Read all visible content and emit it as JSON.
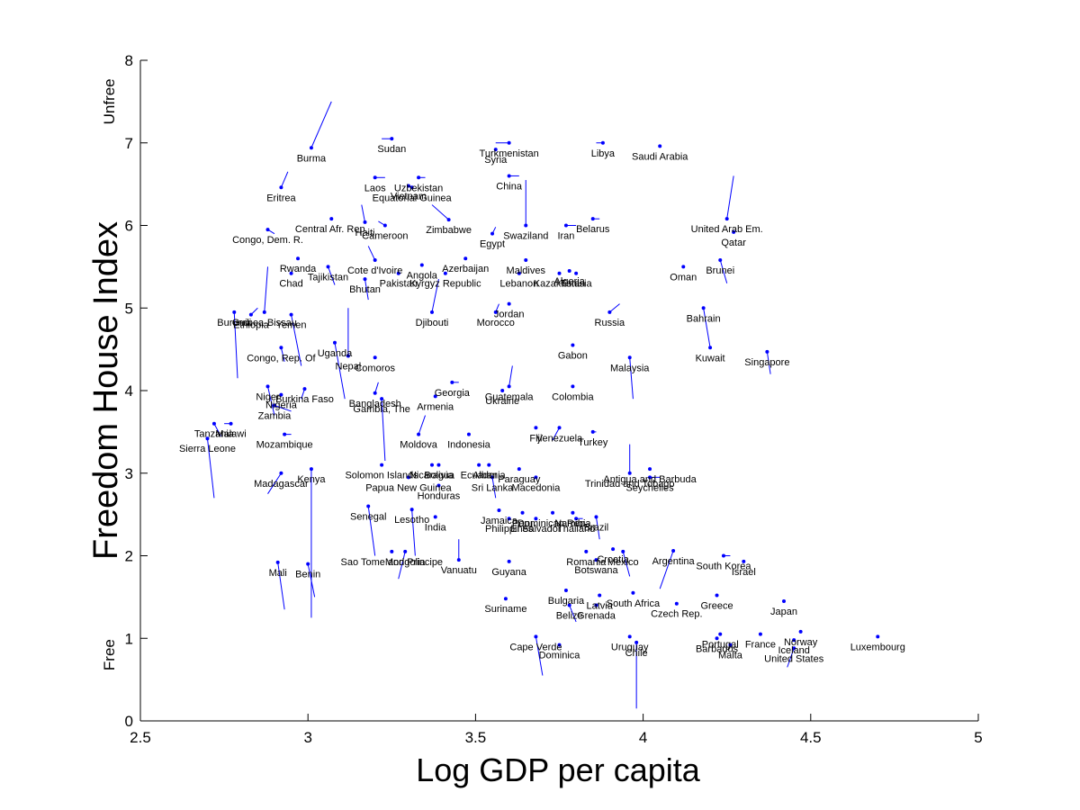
{
  "chart_data": {
    "type": "scatter",
    "title": "",
    "xlabel": "Log GDP per capita",
    "ylabel": "Freedom House Index",
    "xlim": [
      2.5,
      5
    ],
    "ylim": [
      0,
      8
    ],
    "xticks": [
      "2.5",
      "3",
      "3.5",
      "4",
      "4.5",
      "5"
    ],
    "yticks": [
      "0",
      "1",
      "2",
      "3",
      "4",
      "5",
      "6",
      "7",
      "8"
    ],
    "y_annotations": [
      {
        "text": "Free",
        "y": 0.8
      },
      {
        "text": "Unfree",
        "y": 7.5
      }
    ],
    "grid": false,
    "marker_color": "#0000ff",
    "line_color": "#0000ff",
    "points": [
      {
        "label": "Burma",
        "x": 3.01,
        "y": 6.94,
        "x2": 3.07,
        "y2": 7.5
      },
      {
        "label": "Sudan",
        "x": 3.25,
        "y": 7.05,
        "x2": 3.22,
        "y2": 7.05
      },
      {
        "label": "Turkmenistan",
        "x": 3.6,
        "y": 7.0,
        "x2": 3.56,
        "y2": 7.0
      },
      {
        "label": "Syria",
        "x": 3.56,
        "y": 6.92,
        "x2": 3.56,
        "y2": 6.92
      },
      {
        "label": "Libya",
        "x": 3.88,
        "y": 7.0,
        "x2": 3.86,
        "y2": 7.0
      },
      {
        "label": "Saudi Arabia",
        "x": 4.05,
        "y": 6.96,
        "x2": 4.05,
        "y2": 6.96
      },
      {
        "label": "Eritrea",
        "x": 2.92,
        "y": 6.46,
        "x2": 2.94,
        "y2": 6.65
      },
      {
        "label": "Laos",
        "x": 3.2,
        "y": 6.58,
        "x2": 3.23,
        "y2": 6.58
      },
      {
        "label": "Uzbekistan",
        "x": 3.33,
        "y": 6.58,
        "x2": 3.35,
        "y2": 6.58
      },
      {
        "label": "Equatorial Guinea",
        "x": 3.31,
        "y": 6.46,
        "x2": 3.31,
        "y2": 6.46
      },
      {
        "label": "Vietnam",
        "x": 3.3,
        "y": 6.48,
        "x2": 3.3,
        "y2": 6.48
      },
      {
        "label": "China",
        "x": 3.6,
        "y": 6.6,
        "x2": 3.63,
        "y2": 6.6
      },
      {
        "label": "Central Afr. Rep.",
        "x": 3.07,
        "y": 6.08,
        "x2": 3.07,
        "y2": 6.08
      },
      {
        "label": "Haiti",
        "x": 3.17,
        "y": 6.04,
        "x2": 3.16,
        "y2": 6.25
      },
      {
        "label": "Cameroon",
        "x": 3.23,
        "y": 6.0,
        "x2": 3.21,
        "y2": 6.05
      },
      {
        "label": "Zimbabwe",
        "x": 3.42,
        "y": 6.07,
        "x2": 3.37,
        "y2": 6.25
      },
      {
        "label": "Swaziland",
        "x": 3.65,
        "y": 6.0,
        "x2": 3.65,
        "y2": 6.55
      },
      {
        "label": "Iran",
        "x": 3.77,
        "y": 6.0,
        "x2": 3.8,
        "y2": 6.0
      },
      {
        "label": "Belarus",
        "x": 3.85,
        "y": 6.08,
        "x2": 3.87,
        "y2": 6.08
      },
      {
        "label": "Egypt",
        "x": 3.55,
        "y": 5.9,
        "x2": 3.56,
        "y2": 5.98
      },
      {
        "label": "United Arab Em.",
        "x": 4.25,
        "y": 6.08,
        "x2": 4.27,
        "y2": 6.6
      },
      {
        "label": "Qatar",
        "x": 4.27,
        "y": 5.92,
        "x2": 4.27,
        "y2": 5.92
      },
      {
        "label": "Congo, Dem. R.",
        "x": 2.88,
        "y": 5.95,
        "x2": 2.9,
        "y2": 5.9
      },
      {
        "label": "Rwanda",
        "x": 2.97,
        "y": 5.6,
        "x2": 2.97,
        "y2": 5.6
      },
      {
        "label": "Tajikistan",
        "x": 3.06,
        "y": 5.5,
        "x2": 3.08,
        "y2": 5.28
      },
      {
        "label": "Chad",
        "x": 2.95,
        "y": 5.42,
        "x2": 2.95,
        "y2": 5.42
      },
      {
        "label": "Cote d'Ivoire",
        "x": 3.2,
        "y": 5.58,
        "x2": 3.18,
        "y2": 5.75
      },
      {
        "label": "Angola",
        "x": 3.34,
        "y": 5.52,
        "x2": 3.34,
        "y2": 5.52
      },
      {
        "label": "Pakistan",
        "x": 3.27,
        "y": 5.42,
        "x2": 3.27,
        "y2": 5.42
      },
      {
        "label": "Bhutan",
        "x": 3.17,
        "y": 5.35,
        "x2": 3.18,
        "y2": 5.1
      },
      {
        "label": "Azerbaijan",
        "x": 3.47,
        "y": 5.6,
        "x2": 3.47,
        "y2": 5.6
      },
      {
        "label": "Kyrgyz Republic",
        "x": 3.41,
        "y": 5.42,
        "x2": 3.41,
        "y2": 5.42
      },
      {
        "label": "Maldives",
        "x": 3.65,
        "y": 5.58,
        "x2": 3.65,
        "y2": 5.58
      },
      {
        "label": "Lebanon",
        "x": 3.63,
        "y": 5.42,
        "x2": 3.63,
        "y2": 5.42
      },
      {
        "label": "Algeria",
        "x": 3.78,
        "y": 5.45,
        "x2": 3.78,
        "y2": 5.45
      },
      {
        "label": "Kazakhstan",
        "x": 3.75,
        "y": 5.42,
        "x2": 3.75,
        "y2": 5.42
      },
      {
        "label": "Tunisia",
        "x": 3.8,
        "y": 5.42,
        "x2": 3.8,
        "y2": 5.42
      },
      {
        "label": "Oman",
        "x": 4.12,
        "y": 5.5,
        "x2": 4.12,
        "y2": 5.5
      },
      {
        "label": "Brunei",
        "x": 4.23,
        "y": 5.58,
        "x2": 4.25,
        "y2": 5.3
      },
      {
        "label": "Djibouti",
        "x": 3.37,
        "y": 4.95,
        "x2": 3.39,
        "y2": 5.35
      },
      {
        "label": "Morocco",
        "x": 3.56,
        "y": 4.95,
        "x2": 3.57,
        "y2": 5.05
      },
      {
        "label": "Jordan",
        "x": 3.6,
        "y": 5.05,
        "x2": 3.6,
        "y2": 5.05
      },
      {
        "label": "Russia",
        "x": 3.9,
        "y": 4.95,
        "x2": 3.93,
        "y2": 5.05
      },
      {
        "label": "Bahrain",
        "x": 4.18,
        "y": 5.0,
        "x2": 4.18,
        "y2": 5.0
      },
      {
        "label": "Burundi",
        "x": 2.78,
        "y": 4.95,
        "x2": 2.79,
        "y2": 4.15
      },
      {
        "label": "Ethiopia",
        "x": 2.83,
        "y": 4.92,
        "x2": 2.85,
        "y2": 5.0
      },
      {
        "label": "Guinea-Bissau",
        "x": 2.87,
        "y": 4.95,
        "x2": 2.88,
        "y2": 5.5
      },
      {
        "label": "Yemen",
        "x": 2.95,
        "y": 4.92,
        "x2": 2.98,
        "y2": 4.3
      },
      {
        "label": "Congo, Rep. Of",
        "x": 2.92,
        "y": 4.52,
        "x2": 2.93,
        "y2": 4.35
      },
      {
        "label": "Uganda",
        "x": 3.08,
        "y": 4.58,
        "x2": 3.11,
        "y2": 3.9
      },
      {
        "label": "Nepal",
        "x": 3.12,
        "y": 4.42,
        "x2": 3.12,
        "y2": 5.0
      },
      {
        "label": "Comoros",
        "x": 3.2,
        "y": 4.4,
        "x2": 3.2,
        "y2": 4.4
      },
      {
        "label": "Gabon",
        "x": 3.79,
        "y": 4.55,
        "x2": 3.79,
        "y2": 4.55
      },
      {
        "label": "Kuwait",
        "x": 4.2,
        "y": 4.52,
        "x2": 4.18,
        "y2": 5.0
      },
      {
        "label": "Singapore",
        "x": 4.37,
        "y": 4.47,
        "x2": 4.38,
        "y2": 4.2
      },
      {
        "label": "Malaysia",
        "x": 3.96,
        "y": 4.4,
        "x2": 3.97,
        "y2": 3.9
      },
      {
        "label": "Georgia",
        "x": 3.43,
        "y": 4.1,
        "x2": 3.45,
        "y2": 4.1
      },
      {
        "label": "Guatemala",
        "x": 3.6,
        "y": 4.05,
        "x2": 3.61,
        "y2": 4.3
      },
      {
        "label": "Ukraine",
        "x": 3.58,
        "y": 4.0,
        "x2": 3.58,
        "y2": 4.0
      },
      {
        "label": "Colombia",
        "x": 3.79,
        "y": 4.05,
        "x2": 3.79,
        "y2": 4.05
      },
      {
        "label": "Niger",
        "x": 2.88,
        "y": 4.05,
        "x2": 2.9,
        "y2": 3.7
      },
      {
        "label": "Nigeria",
        "x": 2.92,
        "y": 3.95,
        "x2": 2.92,
        "y2": 3.95
      },
      {
        "label": "Burkina Faso",
        "x": 2.99,
        "y": 4.02,
        "x2": 2.98,
        "y2": 3.9
      },
      {
        "label": "Zambia",
        "x": 2.9,
        "y": 3.82,
        "x2": 2.95,
        "y2": 3.75
      },
      {
        "label": "Bangladesh",
        "x": 3.2,
        "y": 3.97,
        "x2": 3.21,
        "y2": 4.1
      },
      {
        "label": "Gambia, The",
        "x": 3.22,
        "y": 3.9,
        "x2": 3.23,
        "y2": 3.15
      },
      {
        "label": "Armenia",
        "x": 3.38,
        "y": 3.93,
        "x2": 3.38,
        "y2": 3.93
      },
      {
        "label": "Tanzania",
        "x": 2.72,
        "y": 3.6,
        "x2": 2.74,
        "y2": 3.45
      },
      {
        "label": "Malawi",
        "x": 2.77,
        "y": 3.6,
        "x2": 2.75,
        "y2": 3.6
      },
      {
        "label": "Sierra Leone",
        "x": 2.7,
        "y": 3.42,
        "x2": 2.72,
        "y2": 2.7
      },
      {
        "label": "Mozambique",
        "x": 2.93,
        "y": 3.47,
        "x2": 2.95,
        "y2": 3.47
      },
      {
        "label": "Moldova",
        "x": 3.33,
        "y": 3.47,
        "x2": 3.35,
        "y2": 3.7
      },
      {
        "label": "Indonesia",
        "x": 3.48,
        "y": 3.47,
        "x2": 3.48,
        "y2": 3.47
      },
      {
        "label": "Fiji",
        "x": 3.68,
        "y": 3.55,
        "x2": 3.68,
        "y2": 3.55
      },
      {
        "label": "Venezuela",
        "x": 3.75,
        "y": 3.55,
        "x2": 3.73,
        "y2": 3.4
      },
      {
        "label": "Turkey",
        "x": 3.85,
        "y": 3.5,
        "x2": 3.86,
        "y2": 3.5
      },
      {
        "label": "Solomon Islands",
        "x": 3.22,
        "y": 3.1,
        "x2": 3.22,
        "y2": 3.1
      },
      {
        "label": "Madagascar",
        "x": 2.92,
        "y": 3.0,
        "x2": 2.88,
        "y2": 2.75
      },
      {
        "label": "Kenya",
        "x": 3.01,
        "y": 3.05,
        "x2": 3.01,
        "y2": 1.25
      },
      {
        "label": "Nicaragua",
        "x": 3.37,
        "y": 3.1,
        "x2": 3.37,
        "y2": 3.1
      },
      {
        "label": "Bolivia",
        "x": 3.39,
        "y": 3.1,
        "x2": 3.39,
        "y2": 3.1
      },
      {
        "label": "Ecuador",
        "x": 3.51,
        "y": 3.1,
        "x2": 3.51,
        "y2": 3.1
      },
      {
        "label": "Albania",
        "x": 3.54,
        "y": 3.1,
        "x2": 3.54,
        "y2": 3.1
      },
      {
        "label": "Paraguay",
        "x": 3.63,
        "y": 3.05,
        "x2": 3.63,
        "y2": 3.05
      },
      {
        "label": "Papua New Guinea",
        "x": 3.3,
        "y": 2.95,
        "x2": 3.3,
        "y2": 2.95
      },
      {
        "label": "Honduras",
        "x": 3.39,
        "y": 2.85,
        "x2": 3.39,
        "y2": 2.85
      },
      {
        "label": "Sri Lanka",
        "x": 3.55,
        "y": 2.95,
        "x2": 3.56,
        "y2": 2.7
      },
      {
        "label": "Macedonia",
        "x": 3.68,
        "y": 2.95,
        "x2": 3.68,
        "y2": 2.95
      },
      {
        "label": "Trinidad and Tobago",
        "x": 3.96,
        "y": 3.0,
        "x2": 3.96,
        "y2": 3.35
      },
      {
        "label": "Antigua and Barbuda",
        "x": 4.02,
        "y": 3.05,
        "x2": 4.02,
        "y2": 3.05
      },
      {
        "label": "Seychelles",
        "x": 4.02,
        "y": 2.95,
        "x2": 4.05,
        "y2": 2.95
      },
      {
        "label": "Senegal",
        "x": 3.18,
        "y": 2.6,
        "x2": 3.2,
        "y2": 2.0
      },
      {
        "label": "Lesotho",
        "x": 3.31,
        "y": 2.56,
        "x2": 3.32,
        "y2": 2.0
      },
      {
        "label": "India",
        "x": 3.38,
        "y": 2.47,
        "x2": 3.38,
        "y2": 2.47
      },
      {
        "label": "Jamaica",
        "x": 3.57,
        "y": 2.55,
        "x2": 3.57,
        "y2": 2.55
      },
      {
        "label": "Philippines",
        "x": 3.6,
        "y": 2.45,
        "x2": 3.6,
        "y2": 2.45
      },
      {
        "label": "Peru",
        "x": 3.64,
        "y": 2.52,
        "x2": 3.64,
        "y2": 2.52
      },
      {
        "label": "Dominican Rep.",
        "x": 3.73,
        "y": 2.52,
        "x2": 3.73,
        "y2": 2.52
      },
      {
        "label": "Namibia",
        "x": 3.79,
        "y": 2.52,
        "x2": 3.79,
        "y2": 2.52
      },
      {
        "label": "El Salvador",
        "x": 3.68,
        "y": 2.45,
        "x2": 3.68,
        "y2": 2.45
      },
      {
        "label": "Thailand",
        "x": 3.8,
        "y": 2.45,
        "x2": 3.82,
        "y2": 2.45
      },
      {
        "label": "Brazil",
        "x": 3.86,
        "y": 2.47,
        "x2": 3.87,
        "y2": 2.2
      },
      {
        "label": "Sao Tome and Principe",
        "x": 3.25,
        "y": 2.05,
        "x2": 3.25,
        "y2": 2.05
      },
      {
        "label": "Mongolia",
        "x": 3.29,
        "y": 2.05,
        "x2": 3.27,
        "y2": 1.72
      },
      {
        "label": "Vanuatu",
        "x": 3.45,
        "y": 1.95,
        "x2": 3.45,
        "y2": 2.2
      },
      {
        "label": "Guyana",
        "x": 3.6,
        "y": 1.93,
        "x2": 3.6,
        "y2": 1.93
      },
      {
        "label": "Romania",
        "x": 3.83,
        "y": 2.05,
        "x2": 3.83,
        "y2": 2.05
      },
      {
        "label": "Croatia",
        "x": 3.91,
        "y": 2.08,
        "x2": 3.91,
        "y2": 2.08
      },
      {
        "label": "Mexico",
        "x": 3.94,
        "y": 2.05,
        "x2": 3.96,
        "y2": 1.75
      },
      {
        "label": "Botswana",
        "x": 3.86,
        "y": 1.95,
        "x2": 3.86,
        "y2": 1.95
      },
      {
        "label": "Argentina",
        "x": 4.09,
        "y": 2.06,
        "x2": 4.05,
        "y2": 1.6
      },
      {
        "label": "South Korea",
        "x": 4.24,
        "y": 2.0,
        "x2": 4.26,
        "y2": 2.0
      },
      {
        "label": "Israel",
        "x": 4.3,
        "y": 1.93,
        "x2": 4.3,
        "y2": 1.93
      },
      {
        "label": "Mali",
        "x": 2.91,
        "y": 1.92,
        "x2": 2.93,
        "y2": 1.35
      },
      {
        "label": "Benin",
        "x": 3.0,
        "y": 1.9,
        "x2": 3.02,
        "y2": 1.5
      },
      {
        "label": "Suriname",
        "x": 3.59,
        "y": 1.48,
        "x2": 3.59,
        "y2": 1.48
      },
      {
        "label": "Bulgaria",
        "x": 3.77,
        "y": 1.58,
        "x2": 3.77,
        "y2": 1.58
      },
      {
        "label": "Latvia",
        "x": 3.87,
        "y": 1.52,
        "x2": 3.87,
        "y2": 1.52
      },
      {
        "label": "South Africa",
        "x": 3.97,
        "y": 1.55,
        "x2": 3.97,
        "y2": 1.55
      },
      {
        "label": "Greece",
        "x": 4.22,
        "y": 1.52,
        "x2": 4.22,
        "y2": 1.52
      },
      {
        "label": "Japan",
        "x": 4.42,
        "y": 1.45,
        "x2": 4.42,
        "y2": 1.45
      },
      {
        "label": "Belize",
        "x": 3.78,
        "y": 1.4,
        "x2": 3.8,
        "y2": 1.2
      },
      {
        "label": "Grenada",
        "x": 3.86,
        "y": 1.4,
        "x2": 3.86,
        "y2": 1.4
      },
      {
        "label": "Czech Rep.",
        "x": 4.1,
        "y": 1.42,
        "x2": 4.1,
        "y2": 1.42
      },
      {
        "label": "Cape Verde",
        "x": 3.68,
        "y": 1.02,
        "x2": 3.7,
        "y2": 0.55
      },
      {
        "label": "Dominica",
        "x": 3.75,
        "y": 0.92,
        "x2": 3.75,
        "y2": 0.92
      },
      {
        "label": "Uruguay",
        "x": 3.96,
        "y": 1.02,
        "x2": 3.96,
        "y2": 1.02
      },
      {
        "label": "Chile",
        "x": 3.98,
        "y": 0.95,
        "x2": 3.98,
        "y2": 0.15
      },
      {
        "label": "Barbados",
        "x": 4.22,
        "y": 1.0,
        "x2": 4.22,
        "y2": 1.0
      },
      {
        "label": "Portugal",
        "x": 4.23,
        "y": 1.05,
        "x2": 4.23,
        "y2": 1.05
      },
      {
        "label": "Malta",
        "x": 4.26,
        "y": 0.92,
        "x2": 4.26,
        "y2": 0.92
      },
      {
        "label": "France",
        "x": 4.35,
        "y": 1.05,
        "x2": 4.35,
        "y2": 1.05
      },
      {
        "label": "Norway",
        "x": 4.47,
        "y": 1.08,
        "x2": 4.47,
        "y2": 1.08
      },
      {
        "label": "Iceland",
        "x": 4.45,
        "y": 0.98,
        "x2": 4.45,
        "y2": 0.98
      },
      {
        "label": "United States",
        "x": 4.45,
        "y": 0.88,
        "x2": 4.43,
        "y2": 0.65
      },
      {
        "label": "Luxembourg",
        "x": 4.7,
        "y": 1.02,
        "x2": 4.7,
        "y2": 1.02
      }
    ]
  }
}
